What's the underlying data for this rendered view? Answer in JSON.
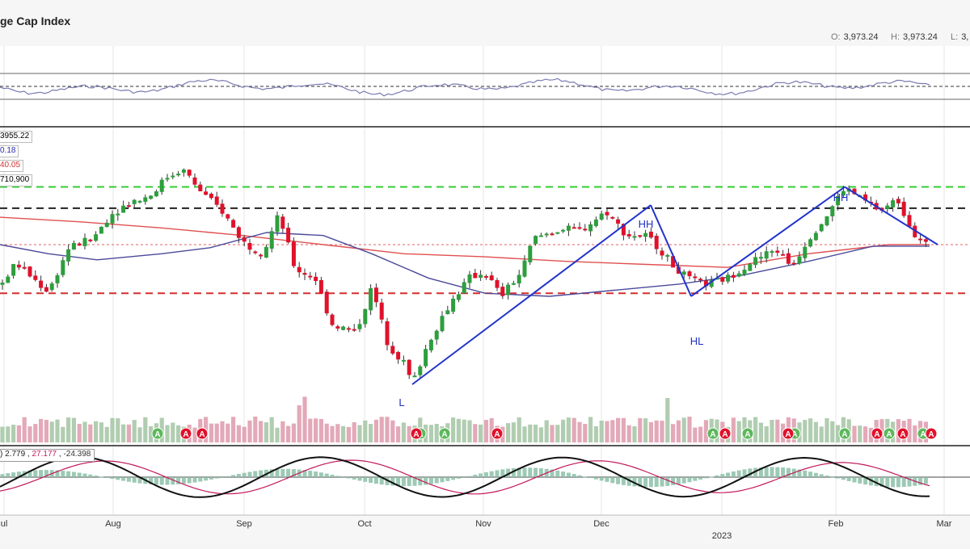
{
  "header": {
    "title": "ge Cap Index",
    "ohlc": [
      {
        "key": "O:",
        "value": "3,973.24"
      },
      {
        "key": "H:",
        "value": "3,973.24"
      },
      {
        "key": "L:",
        "value": "3,"
      }
    ]
  },
  "price_tags": [
    {
      "text": "3955.22",
      "color": "#222222"
    },
    {
      "text": "0.18",
      "color": "#2b2bb0"
    },
    {
      "text": "40.05",
      "color": "#d32f2f"
    },
    {
      "text": "710,900",
      "color": "#333333"
    }
  ],
  "macd_legend": {
    "prefix": ")",
    "v1": "2.779",
    "v2": "27.177",
    "v3": "-24.398"
  },
  "annotations": [
    {
      "text": "L",
      "color": "#2030c0"
    },
    {
      "text": "HH",
      "color": "#2030c0"
    },
    {
      "text": "HL",
      "color": "#2030c0"
    },
    {
      "text": "HH",
      "color": "#2030c0"
    }
  ],
  "colors": {
    "up": "#2e9e3e",
    "down": "#e0112b",
    "ma_slow": "#e05050",
    "ma_fast": "#4a4a9a",
    "trend": "#2233cc"
  },
  "chart_data": {
    "type": "candlestick",
    "title": "ge Cap Index",
    "x_labels": [
      "ul",
      "Aug",
      "Sep",
      "Oct",
      "Nov",
      "Dec",
      "2023",
      "Feb",
      "Mar"
    ],
    "price_range": [
      3440,
      4370
    ],
    "horizontal_levels": [
      {
        "value": 4180,
        "style": "dashed",
        "color": "#33cc33"
      },
      {
        "value": 4110,
        "style": "dashed",
        "color": "#222222"
      },
      {
        "value": 3990,
        "style": "dotted",
        "color": "#e06060"
      },
      {
        "value": 3830,
        "style": "dashed",
        "color": "#d32f2f"
      }
    ],
    "price_path": [
      [
        0,
        3855
      ],
      [
        20,
        3930
      ],
      [
        40,
        3880
      ],
      [
        60,
        3835
      ],
      [
        85,
        3980
      ],
      [
        115,
        4010
      ],
      [
        135,
        4085
      ],
      [
        160,
        4130
      ],
      [
        185,
        4150
      ],
      [
        205,
        4210
      ],
      [
        225,
        4240
      ],
      [
        250,
        4160
      ],
      [
        275,
        4100
      ],
      [
        300,
        4000
      ],
      [
        325,
        3960
      ],
      [
        345,
        4090
      ],
      [
        365,
        3910
      ],
      [
        390,
        3880
      ],
      [
        410,
        3730
      ],
      [
        440,
        3700
      ],
      [
        460,
        3850
      ],
      [
        480,
        3660
      ],
      [
        500,
        3600
      ],
      [
        510,
        3530
      ],
      [
        530,
        3670
      ],
      [
        555,
        3790
      ],
      [
        580,
        3880
      ],
      [
        600,
        3900
      ],
      [
        620,
        3820
      ],
      [
        645,
        3900
      ],
      [
        660,
        4010
      ],
      [
        690,
        4040
      ],
      [
        720,
        4040
      ],
      [
        750,
        4100
      ],
      [
        775,
        4020
      ],
      [
        800,
        4020
      ],
      [
        815,
        3980
      ],
      [
        830,
        3930
      ],
      [
        850,
        3880
      ],
      [
        875,
        3860
      ],
      [
        900,
        3880
      ],
      [
        930,
        3935
      ],
      [
        960,
        3975
      ],
      [
        980,
        3920
      ],
      [
        1000,
        4010
      ],
      [
        1020,
        4075
      ],
      [
        1045,
        4180
      ],
      [
        1065,
        4140
      ],
      [
        1090,
        4100
      ],
      [
        1110,
        4140
      ],
      [
        1130,
        4030
      ],
      [
        1150,
        3985
      ]
    ],
    "ma_slow": [
      [
        0,
        4080
      ],
      [
        100,
        4065
      ],
      [
        200,
        4045
      ],
      [
        300,
        4020
      ],
      [
        400,
        3990
      ],
      [
        500,
        3960
      ],
      [
        600,
        3950
      ],
      [
        700,
        3935
      ],
      [
        800,
        3925
      ],
      [
        900,
        3915
      ],
      [
        1000,
        3960
      ],
      [
        1100,
        3990
      ],
      [
        1150,
        3990
      ]
    ],
    "ma_fast": [
      [
        0,
        3990
      ],
      [
        60,
        3960
      ],
      [
        120,
        3940
      ],
      [
        200,
        3960
      ],
      [
        260,
        3980
      ],
      [
        330,
        4030
      ],
      [
        400,
        4020
      ],
      [
        460,
        3960
      ],
      [
        530,
        3880
      ],
      [
        600,
        3830
      ],
      [
        680,
        3820
      ],
      [
        760,
        3840
      ],
      [
        840,
        3860
      ],
      [
        920,
        3890
      ],
      [
        1000,
        3935
      ],
      [
        1080,
        3985
      ],
      [
        1150,
        3985
      ]
    ],
    "trendlines": [
      {
        "from": [
          510,
          3530
        ],
        "to": [
          805,
          4120
        ]
      },
      {
        "from": [
          805,
          4120
        ],
        "to": [
          855,
          3820
        ]
      },
      {
        "from": [
          855,
          3820
        ],
        "to": [
          1045,
          4180
        ]
      },
      {
        "from": [
          1045,
          4180
        ],
        "to": [
          1160,
          3990
        ]
      }
    ],
    "volume_markers": {
      "A_red": [
        230,
        250,
        515,
        615,
        897,
        975,
        1085,
        1117,
        1152
      ],
      "A_green": [
        195,
        520,
        550,
        882,
        925,
        983,
        1045,
        1100,
        1142
      ]
    },
    "macd": {
      "macd": 2.779,
      "signal": 27.177,
      "histogram": -24.398
    }
  }
}
